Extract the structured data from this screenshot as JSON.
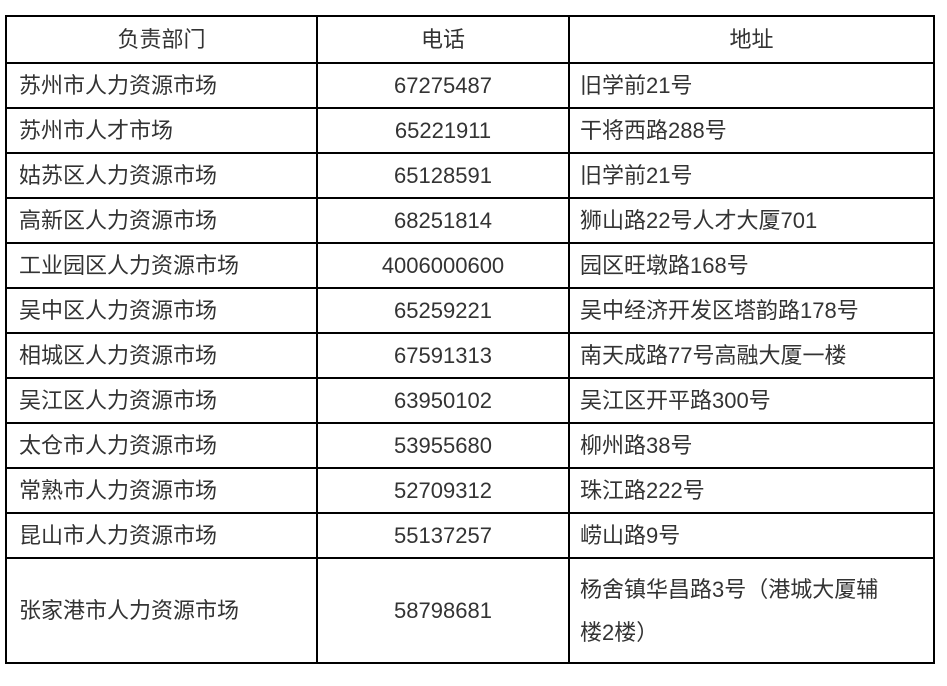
{
  "colors": {
    "border": "#000000",
    "text": "#333333",
    "background": "#ffffff"
  },
  "table": {
    "headers": {
      "department": "负责部门",
      "phone": "电话",
      "address": "地址"
    },
    "rows": [
      {
        "department": "苏州市人力资源市场",
        "phone": "67275487",
        "address": "旧学前21号"
      },
      {
        "department": "苏州市人才市场",
        "phone": "65221911",
        "address": "干将西路288号"
      },
      {
        "department": "姑苏区人力资源市场",
        "phone": "65128591",
        "address": "旧学前21号"
      },
      {
        "department": "高新区人力资源市场",
        "phone": "68251814",
        "address": "狮山路22号人才大厦701"
      },
      {
        "department": "工业园区人力资源市场",
        "phone": "4006000600",
        "address": "园区旺墩路168号"
      },
      {
        "department": "吴中区人力资源市场",
        "phone": "65259221",
        "address": "吴中经济开发区塔韵路178号"
      },
      {
        "department": "相城区人力资源市场",
        "phone": "67591313",
        "address": "南天成路77号高融大厦一楼"
      },
      {
        "department": "吴江区人力资源市场",
        "phone": "63950102",
        "address": "吴江区开平路300号"
      },
      {
        "department": "太仓市人力资源市场",
        "phone": "53955680",
        "address": "柳州路38号"
      },
      {
        "department": "常熟市人力资源市场",
        "phone": "52709312",
        "address": "珠江路222号"
      },
      {
        "department": "昆山市人力资源市场",
        "phone": "55137257",
        "address": "崂山路9号"
      },
      {
        "department": "张家港市人力资源市场",
        "phone": "58798681",
        "address": "杨舍镇华昌路3号（港城大厦辅楼2楼）"
      }
    ]
  }
}
